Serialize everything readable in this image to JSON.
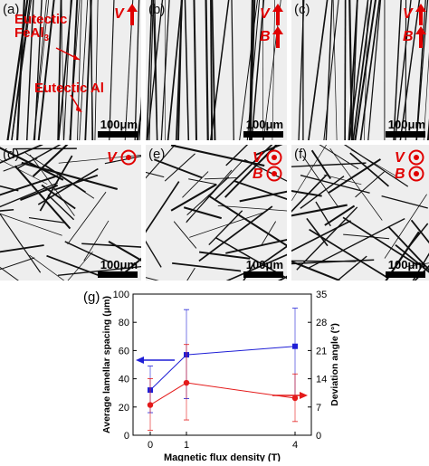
{
  "panels": [
    {
      "label": "(a)",
      "scale": "100μm",
      "field": "V",
      "field2": "",
      "dir": "up",
      "annotations": {
        "feal3_prefix": "Eutectic",
        "feal3_line2": "FeAl",
        "feal3_sub": "3",
        "al": "Eutectic Al"
      }
    },
    {
      "label": "(b)",
      "scale": "100μm",
      "field": "V",
      "field2": "B",
      "dir": "up"
    },
    {
      "label": "(c)",
      "scale": "100μm",
      "field": "V",
      "field2": "B",
      "dir": "up"
    },
    {
      "label": "(d)",
      "scale": "100μm",
      "field": "V",
      "field2": "",
      "dir": "out"
    },
    {
      "label": "(e)",
      "scale": "100μm",
      "field": "V",
      "field2": "B",
      "dir": "out"
    },
    {
      "label": "(f)",
      "scale": "100μm",
      "field": "V",
      "field2": "B",
      "dir": "out"
    }
  ],
  "colors": {
    "accent_red": "#e00000",
    "spacing_series": "#1f1fd6",
    "angle_series": "#e41a1a"
  },
  "chart_data": {
    "panel_label": "(g)",
    "type": "line",
    "xlabel": "Magnetic flux density (T)",
    "ylabel_left": "Average lamellar spacing (μm)",
    "ylabel_right": "Deviation angle (°)",
    "x_ticks": [
      0,
      1,
      4
    ],
    "x_positions": [
      "0",
      "1",
      "4"
    ],
    "ylim_left": [
      0,
      100
    ],
    "yticks_left": [
      0,
      20,
      40,
      60,
      80,
      100
    ],
    "ylim_right": [
      0,
      35
    ],
    "yticks_right": [
      0,
      7,
      14,
      21,
      28,
      35
    ],
    "series": [
      {
        "axis": "left",
        "marker": "square",
        "color": "#1f1fd6",
        "values": [
          32,
          57,
          63
        ],
        "err_low": [
          16,
          31,
          35
        ],
        "err_high": [
          17,
          32,
          27
        ]
      },
      {
        "axis": "right",
        "marker": "circle",
        "color": "#e41a1a",
        "values": [
          7.5,
          13,
          9.2
        ],
        "err_low": [
          6.3,
          9.2,
          5.8
        ],
        "err_high": [
          6.5,
          9.5,
          6.0
        ]
      }
    ]
  }
}
